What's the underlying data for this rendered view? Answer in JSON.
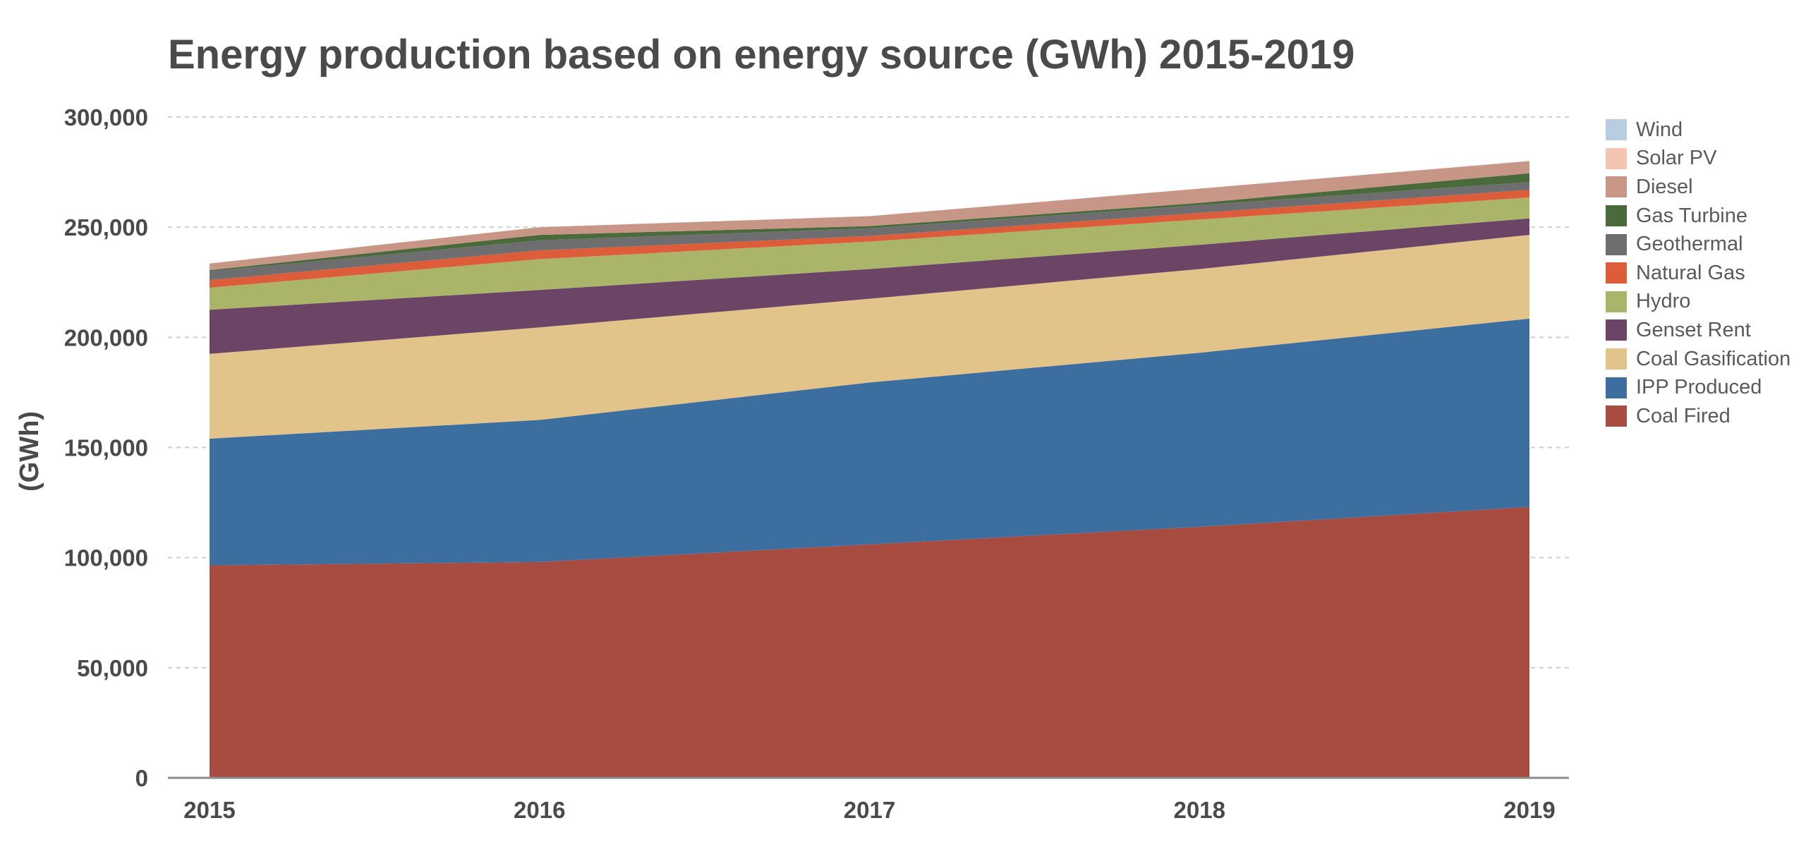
{
  "chart_data": {
    "type": "area",
    "stacked": true,
    "title": "Energy production based on energy source (GWh) 2015-2019",
    "xlabel": "",
    "ylabel": "(GWh)",
    "x": [
      "2015",
      "2016",
      "2017",
      "2018",
      "2019"
    ],
    "ylim": [
      0,
      300000
    ],
    "yticks": [
      0,
      50000,
      100000,
      150000,
      200000,
      250000,
      300000
    ],
    "ytick_labels": [
      "0",
      "50,000",
      "100,000",
      "150,000",
      "200,000",
      "250,000",
      "300,000"
    ],
    "grid": true,
    "legend_position": "right",
    "series": [
      {
        "name": "Coal Fired",
        "color": "#a84c42",
        "values": [
          96500,
          98000,
          106000,
          114000,
          123000
        ]
      },
      {
        "name": "IPP Produced",
        "color": "#3c6fa0",
        "values": [
          57500,
          64500,
          73500,
          79000,
          85500
        ]
      },
      {
        "name": "Coal Gasification",
        "color": "#e2c48a",
        "values": [
          38500,
          42000,
          38000,
          38000,
          38000
        ]
      },
      {
        "name": "Genset Rent",
        "color": "#6b4466",
        "values": [
          20000,
          17000,
          13500,
          11000,
          7500
        ]
      },
      {
        "name": "Hydro",
        "color": "#abb56a",
        "values": [
          10000,
          14000,
          12500,
          11500,
          9500
        ]
      },
      {
        "name": "Natural Gas",
        "color": "#dd5c3a",
        "values": [
          3500,
          4000,
          2500,
          3000,
          3500
        ]
      },
      {
        "name": "Geothermal",
        "color": "#6e6e70",
        "values": [
          4000,
          4500,
          3500,
          3500,
          3500
        ]
      },
      {
        "name": "Gas Turbine",
        "color": "#4b6a3c",
        "values": [
          500,
          2500,
          1000,
          1000,
          4000
        ]
      },
      {
        "name": "Diesel",
        "color": "#c79686",
        "values": [
          3000,
          3500,
          4500,
          6500,
          5500
        ]
      },
      {
        "name": "Solar PV",
        "color": "#f3c4b0",
        "values": [
          50,
          50,
          50,
          50,
          100
        ]
      },
      {
        "name": "Wind",
        "color": "#b8cde0",
        "values": [
          0,
          0,
          0,
          0,
          50
        ]
      }
    ]
  }
}
